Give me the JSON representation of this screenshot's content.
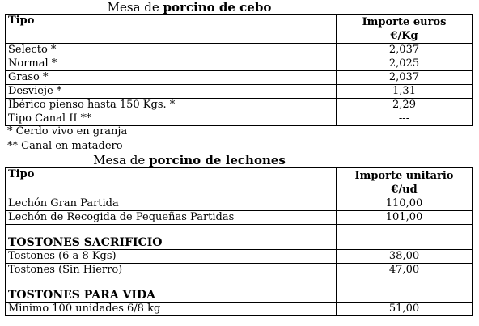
{
  "cebo": {
    "title_prefix": "Mesa de ",
    "title_bold": "porcino de cebo",
    "header": {
      "tipo": "Tipo",
      "importe_line1": "Importe euros",
      "importe_line2": "€/Kg"
    },
    "rows": [
      {
        "tipo": "Selecto *",
        "importe": "2,037"
      },
      {
        "tipo": "Normal *",
        "importe": "2,025"
      },
      {
        "tipo": "Graso *",
        "importe": "2,037"
      },
      {
        "tipo": "Desvieje *",
        "importe": "1,31"
      },
      {
        "tipo": "Ibérico pienso hasta 150 Kgs. *",
        "importe": "2,29"
      },
      {
        "tipo": "Tipo Canal II **",
        "importe": "---"
      }
    ],
    "notes": [
      "* Cerdo vivo en granja",
      "** Canal en matadero"
    ]
  },
  "lechones": {
    "title_prefix": "Mesa de ",
    "title_bold": "porcino de lechones",
    "header": {
      "tipo": "Tipo",
      "importe_line1": "Importe unitario",
      "importe_line2": "€/ud"
    },
    "rows": [
      {
        "tipo": "Lechón Gran Partida",
        "importe": "110,00"
      },
      {
        "tipo": "Lechón de Recogida de Pequeñas Partidas",
        "importe": "101,00"
      }
    ],
    "section_sacrificio": "TOSTONES SACRIFICIO",
    "sacrificio_rows": [
      {
        "tipo": "Tostones (6 a 8 Kgs)",
        "importe": "38,00"
      },
      {
        "tipo": "Tostones  (Sin Hierro)",
        "importe": "47,00"
      }
    ],
    "section_vida": "TOSTONES PARA VIDA",
    "vida_rows": [
      {
        "tipo": "Minimo 100 unidades 6/8 kg",
        "importe": "51,00"
      }
    ]
  }
}
